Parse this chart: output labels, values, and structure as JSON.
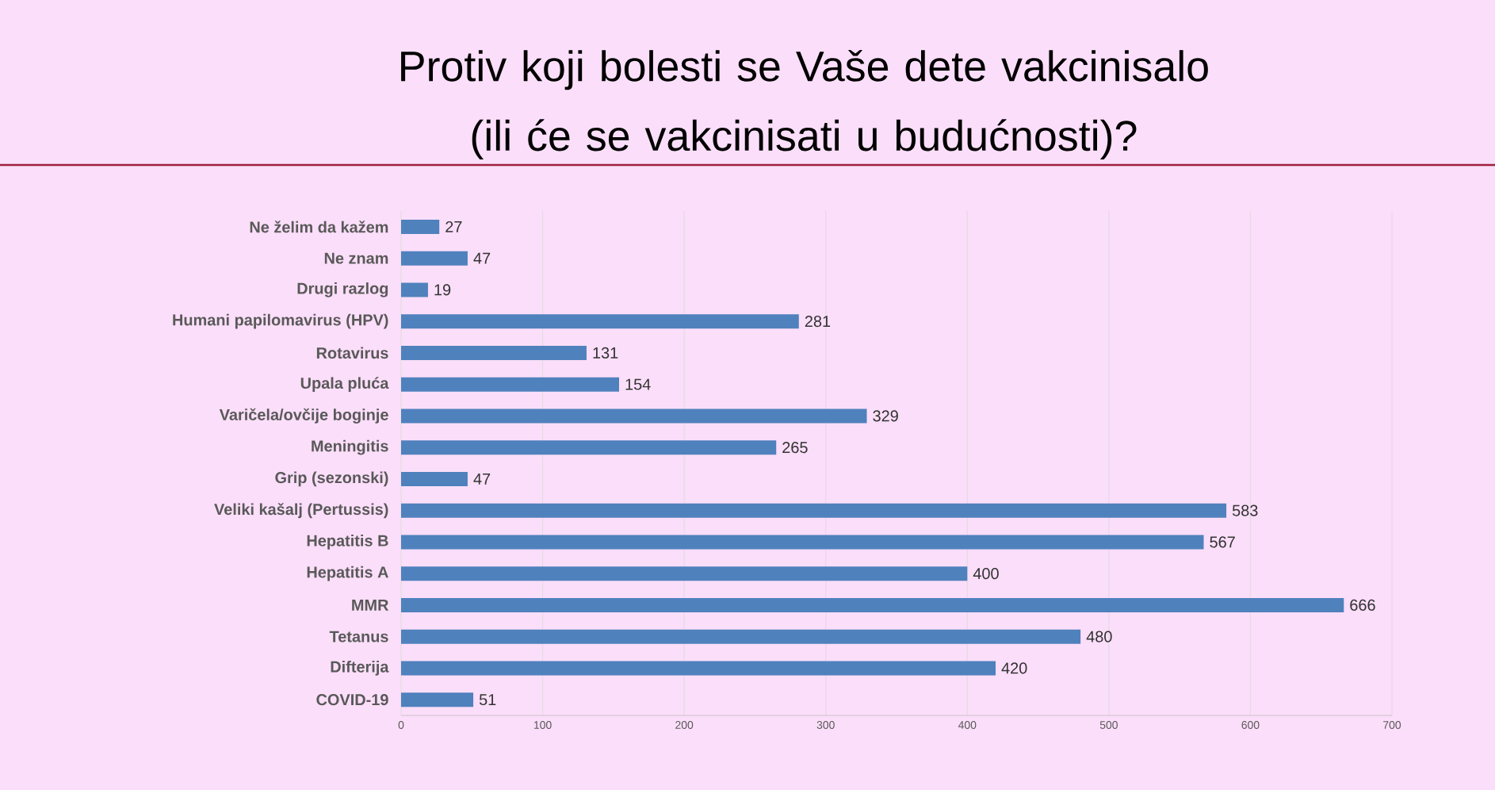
{
  "chart_data": {
    "type": "bar",
    "orientation": "horizontal",
    "title": "Protiv koji bolesti se Vaše dete vakcinisalo (ili će se vakcinisati u budućnosti)?",
    "categories": [
      "Ne želim da kažem",
      "Ne znam",
      "Drugi razlog",
      "Humani papilomavirus (HPV)",
      "Rotavirus",
      "Upala pluća",
      "Varičela/ovčije boginje",
      "Meningitis",
      "Grip (sezonski)",
      "Veliki kašalj (Pertussis)",
      "Hepatitis B",
      "Hepatitis A",
      "MMR",
      "Tetanus",
      "Difterija",
      "COVID-19"
    ],
    "values": [
      27,
      47,
      19,
      281,
      131,
      154,
      329,
      265,
      47,
      583,
      567,
      400,
      666,
      480,
      420,
      51
    ],
    "color": "#4f81bd",
    "xlim": [
      0,
      700
    ],
    "xticks": [
      0,
      100,
      200,
      300,
      400,
      500,
      600,
      700
    ],
    "grid": "x",
    "data_labels": true
  }
}
